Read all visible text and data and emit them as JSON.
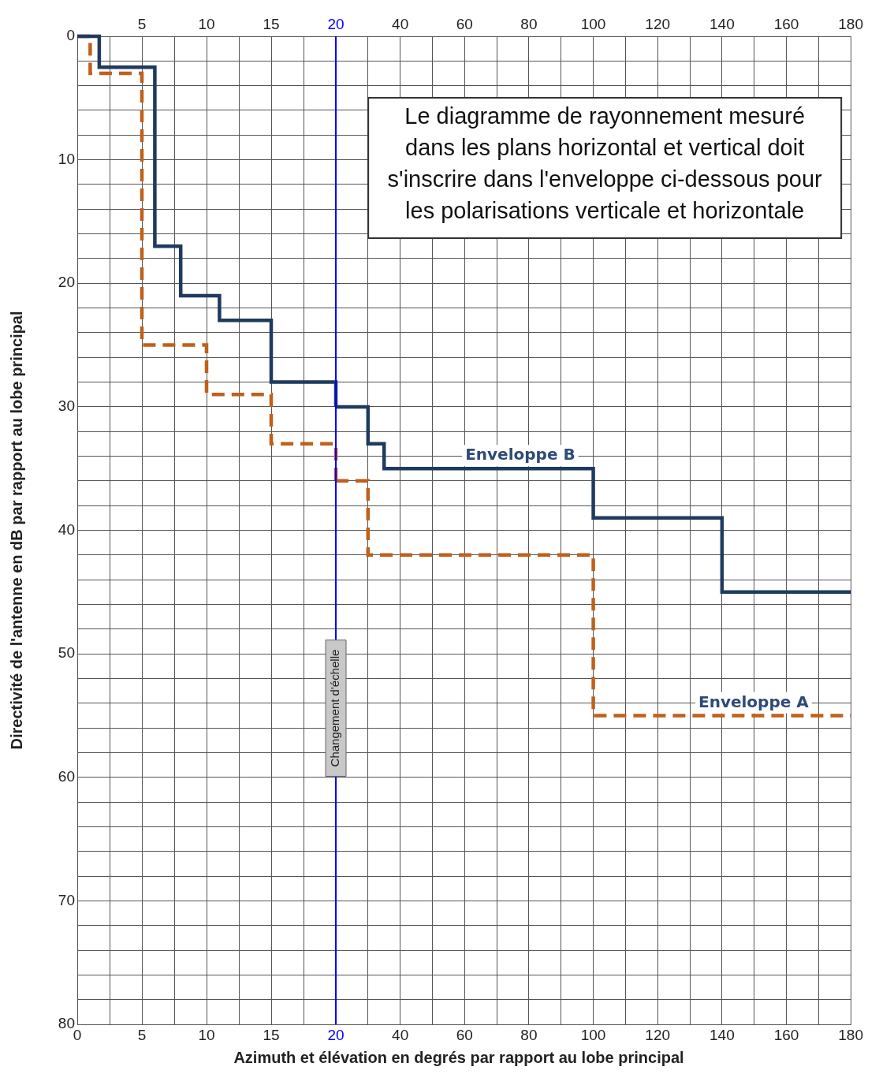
{
  "chart_data": [
    {
      "type": "step",
      "ylabel": "Directivité de l'antenne en dB par rapport au lobe principal",
      "series": [
        {
          "color": "#1f3a5f",
          "line_style": "solid",
          "x": [
            0,
            1.7,
            6,
            8,
            11,
            15,
            20
          ],
          "values": [
            0,
            2.5,
            17,
            21,
            23,
            28,
            30
          ]
        },
        {
          "color": "#c0601a",
          "line_style": "dashed",
          "x": [
            0,
            1,
            5,
            10,
            15,
            20
          ],
          "values": [
            0,
            3,
            25,
            29,
            33,
            36
          ]
        }
      ],
      "xlim": [
        0,
        20
      ],
      "xticks": [
        0,
        {
          "value": 2.5,
          "label": null
        },
        5,
        {
          "value": 7.5,
          "label": null
        },
        10,
        {
          "value": 12.5,
          "label": null
        },
        15,
        {
          "value": 17.5,
          "label": null
        },
        20
      ],
      "x2lim": [
        0,
        20
      ],
      "x2ticks": [
        5,
        10,
        15,
        20
      ],
      "ylim": [
        80,
        0
      ],
      "yticks": [
        0,
        {
          "value": 2,
          "label": null
        },
        {
          "value": 4,
          "label": null
        },
        {
          "value": 6,
          "label": null
        },
        {
          "value": 8,
          "label": null
        },
        10,
        {
          "value": 12,
          "label": null
        },
        {
          "value": 14,
          "label": null
        },
        {
          "value": 16,
          "label": null
        },
        {
          "value": 18,
          "label": null
        },
        20,
        {
          "value": 22,
          "label": null
        },
        {
          "value": 24,
          "label": null
        },
        {
          "value": 26,
          "label": null
        },
        {
          "value": 28,
          "label": null
        },
        30,
        {
          "value": 32,
          "label": null
        },
        {
          "value": 34,
          "label": null
        },
        {
          "value": 36,
          "label": null
        },
        {
          "value": 38,
          "label": null
        },
        40,
        {
          "value": 42,
          "label": null
        },
        {
          "value": 44,
          "label": null
        },
        {
          "value": 46,
          "label": null
        },
        {
          "value": 48,
          "label": null
        },
        50,
        {
          "value": 52,
          "label": null
        },
        {
          "value": 54,
          "label": null
        },
        {
          "value": 56,
          "label": null
        },
        {
          "value": 58,
          "label": null
        },
        60,
        {
          "value": 62,
          "label": null
        },
        {
          "value": 64,
          "label": null
        },
        {
          "value": 66,
          "label": null
        },
        {
          "value": 68,
          "label": null
        },
        70,
        {
          "value": 72,
          "label": null
        },
        {
          "value": 74,
          "label": null
        },
        {
          "value": 76,
          "label": null
        },
        {
          "value": 78,
          "label": null
        },
        80
      ],
      "ref_lines": [
        {
          "axis": "x",
          "value": 20,
          "label": "Changement d'échelle",
          "color": "#0000ff"
        }
      ],
      "grid": true,
      "legend": false,
      "marker": "none"
    },
    {
      "type": "step",
      "xlabel": "Azimuth et élévation en degrés par rapport au lobe principal",
      "annotations": [
        "Le diagramme de rayonnement mesuré dans les plans horizontal et vertical doit s'inscrire dans l'enveloppe ci-dessous pour les polarisations verticale et horizontale"
      ],
      "series": [
        {
          "name": "Enveloppe B",
          "color": "#1f3a5f",
          "line_style": "solid",
          "x": [
            20,
            30,
            35,
            100,
            140,
            180
          ],
          "values": [
            30,
            33,
            35,
            39,
            45,
            45
          ]
        },
        {
          "name": "Enveloppe A",
          "color": "#c0601a",
          "line_style": "dashed",
          "x": [
            20,
            30,
            100,
            180
          ],
          "values": [
            36,
            42,
            55,
            55
          ]
        }
      ],
      "xlim": [
        20,
        180
      ],
      "xticks": [
        {
          "value": 30,
          "label": null
        },
        40,
        {
          "value": 50,
          "label": null
        },
        60,
        {
          "value": 70,
          "label": null
        },
        80,
        {
          "value": 90,
          "label": null
        },
        100,
        {
          "value": 110,
          "label": null
        },
        120,
        {
          "value": 130,
          "label": null
        },
        140,
        {
          "value": 150,
          "label": null
        },
        160,
        {
          "value": 170,
          "label": null
        },
        180
      ],
      "x2lim": [
        20,
        180
      ],
      "x2ticks": [
        40,
        60,
        80,
        100,
        120,
        140,
        160,
        180
      ],
      "ylim": [
        80,
        0
      ],
      "yticks": [
        0,
        {
          "value": 2,
          "label": null
        },
        {
          "value": 4,
          "label": null
        },
        {
          "value": 6,
          "label": null
        },
        {
          "value": 8,
          "label": null
        },
        10,
        {
          "value": 12,
          "label": null
        },
        {
          "value": 14,
          "label": null
        },
        {
          "value": 16,
          "label": null
        },
        {
          "value": 18,
          "label": null
        },
        20,
        {
          "value": 22,
          "label": null
        },
        {
          "value": 24,
          "label": null
        },
        {
          "value": 26,
          "label": null
        },
        {
          "value": 28,
          "label": null
        },
        30,
        {
          "value": 32,
          "label": null
        },
        {
          "value": 34,
          "label": null
        },
        {
          "value": 36,
          "label": null
        },
        {
          "value": 38,
          "label": null
        },
        40,
        {
          "value": 42,
          "label": null
        },
        {
          "value": 44,
          "label": null
        },
        {
          "value": 46,
          "label": null
        },
        {
          "value": 48,
          "label": null
        },
        50,
        {
          "value": 52,
          "label": null
        },
        {
          "value": 54,
          "label": null
        },
        {
          "value": 56,
          "label": null
        },
        {
          "value": 58,
          "label": null
        },
        60,
        {
          "value": 62,
          "label": null
        },
        {
          "value": 64,
          "label": null
        },
        {
          "value": 66,
          "label": null
        },
        {
          "value": 68,
          "label": null
        },
        70,
        {
          "value": 72,
          "label": null
        },
        {
          "value": 74,
          "label": null
        },
        {
          "value": 76,
          "label": null
        },
        {
          "value": 78,
          "label": null
        },
        80
      ],
      "tick_labels": "x",
      "grid": true,
      "legend": false,
      "marker": "none"
    }
  ]
}
